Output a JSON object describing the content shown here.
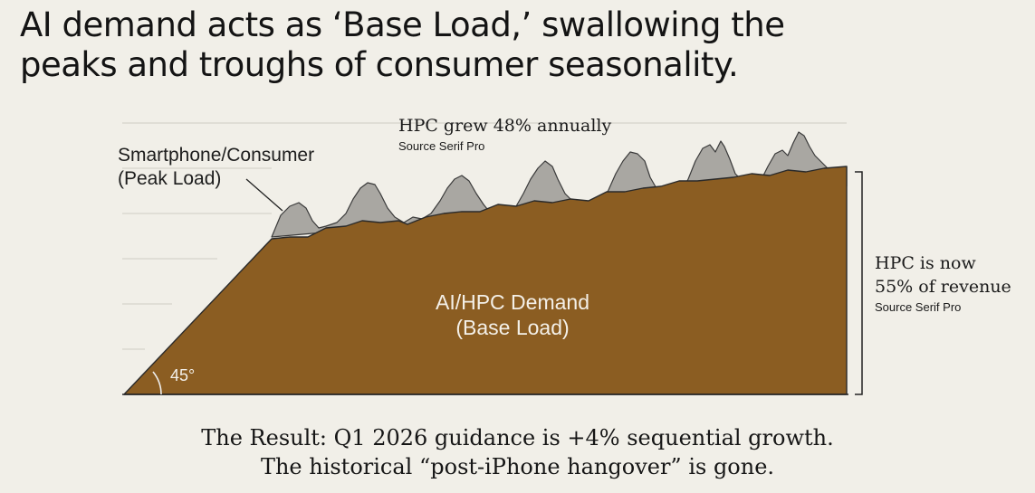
{
  "title": {
    "line1": "AI demand acts as ‘Base Load,’ swallowing the",
    "line2": "peaks and troughs of consumer seasonality."
  },
  "labels": {
    "hpc_growth": "HPC grew 48% annually",
    "hpc_growth_note": "Source Serif Pro",
    "consumer_line1": "Smartphone/Consumer",
    "consumer_line2": "(Peak Load)",
    "base_line1": "AI/HPC Demand",
    "base_line2": "(Base Load)",
    "angle": "45°",
    "share_line1": "HPC is now",
    "share_line2": "55% of revenue",
    "share_note": "Source Serif Pro"
  },
  "caption": {
    "line1": "The Result: Q1 2026 guidance is +4% sequential growth.",
    "line2": "The historical “post-iPhone hangover” is gone."
  },
  "colors": {
    "background": "#f1efe8",
    "base_load": "#8b5d22",
    "peak_load": "#a7a5a0",
    "outline": "#2a2a2a",
    "gridline": "#c9c7c0"
  }
}
